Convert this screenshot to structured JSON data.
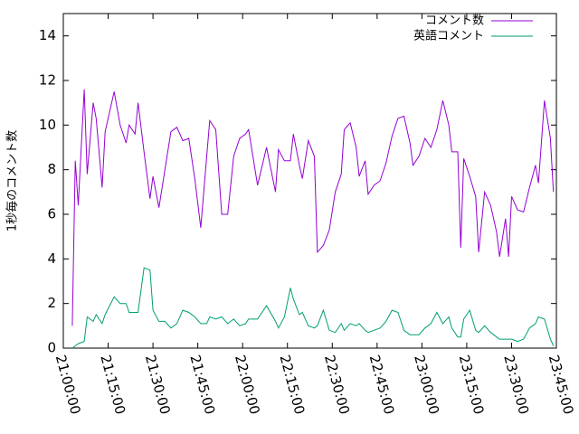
{
  "chart_data": {
    "type": "line",
    "y_label": "1秒毎のコメント数",
    "x": [
      "21:03:00",
      "21:04:00",
      "21:05:00",
      "21:07:00",
      "21:08:00",
      "21:10:00",
      "21:11:00",
      "21:13:00",
      "21:14:00",
      "21:17:00",
      "21:19:00",
      "21:21:00",
      "21:22:00",
      "21:24:00",
      "21:25:00",
      "21:27:00",
      "21:29:00",
      "21:30:00",
      "21:32:00",
      "21:34:00",
      "21:36:00",
      "21:38:00",
      "21:40:00",
      "21:42:00",
      "21:44:00",
      "21:46:00",
      "21:48:00",
      "21:49:00",
      "21:51:00",
      "21:53:00",
      "21:55:00",
      "21:57:00",
      "21:59:00",
      "22:01:00",
      "22:02:00",
      "22:05:00",
      "22:08:00",
      "22:11:00",
      "22:12:00",
      "22:14:00",
      "22:16:00",
      "22:17:00",
      "22:19:00",
      "22:20:00",
      "22:22:00",
      "22:24:00",
      "22:25:00",
      "22:27:00",
      "22:29:00",
      "22:31:00",
      "22:33:00",
      "22:34:00",
      "22:36:00",
      "22:38:00",
      "22:39:00",
      "22:41:00",
      "22:42:00",
      "22:44:00",
      "22:46:00",
      "22:48:00",
      "22:50:00",
      "22:52:00",
      "22:54:00",
      "22:56:00",
      "22:57:00",
      "22:59:00",
      "23:01:00",
      "23:03:00",
      "23:05:00",
      "23:07:00",
      "23:09:00",
      "23:10:00",
      "23:12:00",
      "23:13:00",
      "23:14:00",
      "23:16:00",
      "23:18:00",
      "23:19:00",
      "23:21:00",
      "23:23:00",
      "23:25:00",
      "23:26:00",
      "23:28:00",
      "23:29:00",
      "23:30:00",
      "23:32:00",
      "23:34:00",
      "23:36:00",
      "23:38:00",
      "23:39:00",
      "23:41:00",
      "23:43:00",
      "23:44:00"
    ],
    "series": [
      {
        "name": "コメント数",
        "color": "#9400d3",
        "values": [
          1.0,
          8.4,
          6.4,
          11.6,
          7.8,
          11.0,
          10.3,
          7.2,
          9.7,
          11.5,
          10.0,
          9.2,
          10.0,
          9.6,
          11.0,
          8.8,
          6.7,
          7.7,
          6.3,
          8.0,
          9.7,
          9.9,
          9.3,
          9.4,
          7.6,
          5.4,
          8.6,
          10.2,
          9.8,
          6.0,
          6.0,
          8.6,
          9.4,
          9.6,
          9.8,
          7.3,
          9.0,
          7.0,
          8.9,
          8.4,
          8.4,
          9.6,
          8.2,
          7.6,
          9.3,
          8.6,
          4.3,
          4.6,
          5.3,
          7.0,
          7.8,
          9.8,
          10.1,
          9.0,
          7.7,
          8.4,
          6.9,
          7.3,
          7.5,
          8.3,
          9.5,
          10.3,
          10.4,
          9.2,
          8.2,
          8.6,
          9.4,
          9.0,
          9.8,
          11.1,
          10.0,
          8.8,
          8.8,
          4.5,
          8.5,
          7.7,
          6.8,
          4.3,
          7.0,
          6.4,
          5.2,
          4.1,
          5.8,
          4.1,
          6.8,
          6.2,
          6.1,
          7.2,
          8.2,
          7.4,
          11.1,
          9.4,
          7.0
        ]
      },
      {
        "name": "英語コメント",
        "color": "#009e73",
        "values": [
          0.0,
          0.1,
          0.2,
          0.3,
          1.4,
          1.2,
          1.5,
          1.1,
          1.5,
          2.3,
          2.0,
          2.0,
          1.6,
          1.6,
          1.6,
          3.6,
          3.5,
          1.7,
          1.2,
          1.2,
          0.9,
          1.1,
          1.7,
          1.6,
          1.4,
          1.1,
          1.1,
          1.4,
          1.3,
          1.4,
          1.1,
          1.3,
          1.0,
          1.1,
          1.3,
          1.3,
          1.9,
          1.2,
          0.9,
          1.4,
          2.7,
          2.2,
          1.5,
          1.6,
          1.0,
          0.9,
          1.0,
          1.7,
          0.8,
          0.7,
          1.1,
          0.8,
          1.1,
          1.0,
          1.1,
          0.8,
          0.7,
          0.8,
          0.9,
          1.2,
          1.7,
          1.6,
          0.8,
          0.6,
          0.6,
          0.6,
          0.9,
          1.1,
          1.6,
          1.1,
          1.4,
          0.9,
          0.5,
          0.5,
          1.3,
          1.7,
          0.8,
          0.7,
          1.0,
          0.7,
          0.5,
          0.4,
          0.4,
          0.4,
          0.4,
          0.3,
          0.4,
          0.9,
          1.1,
          1.4,
          1.3,
          0.4,
          0.1
        ]
      }
    ],
    "xlim": [
      "21:00:00",
      "23:45:00"
    ],
    "xticks": [
      "21:00:00",
      "21:15:00",
      "21:30:00",
      "21:45:00",
      "22:00:00",
      "22:15:00",
      "22:30:00",
      "22:45:00",
      "23:00:00",
      "23:15:00",
      "23:30:00",
      "23:45:00"
    ],
    "ylim": [
      0,
      15
    ],
    "yticks": [
      0,
      2,
      4,
      6,
      8,
      10,
      12,
      14
    ],
    "legend": "top-right"
  }
}
